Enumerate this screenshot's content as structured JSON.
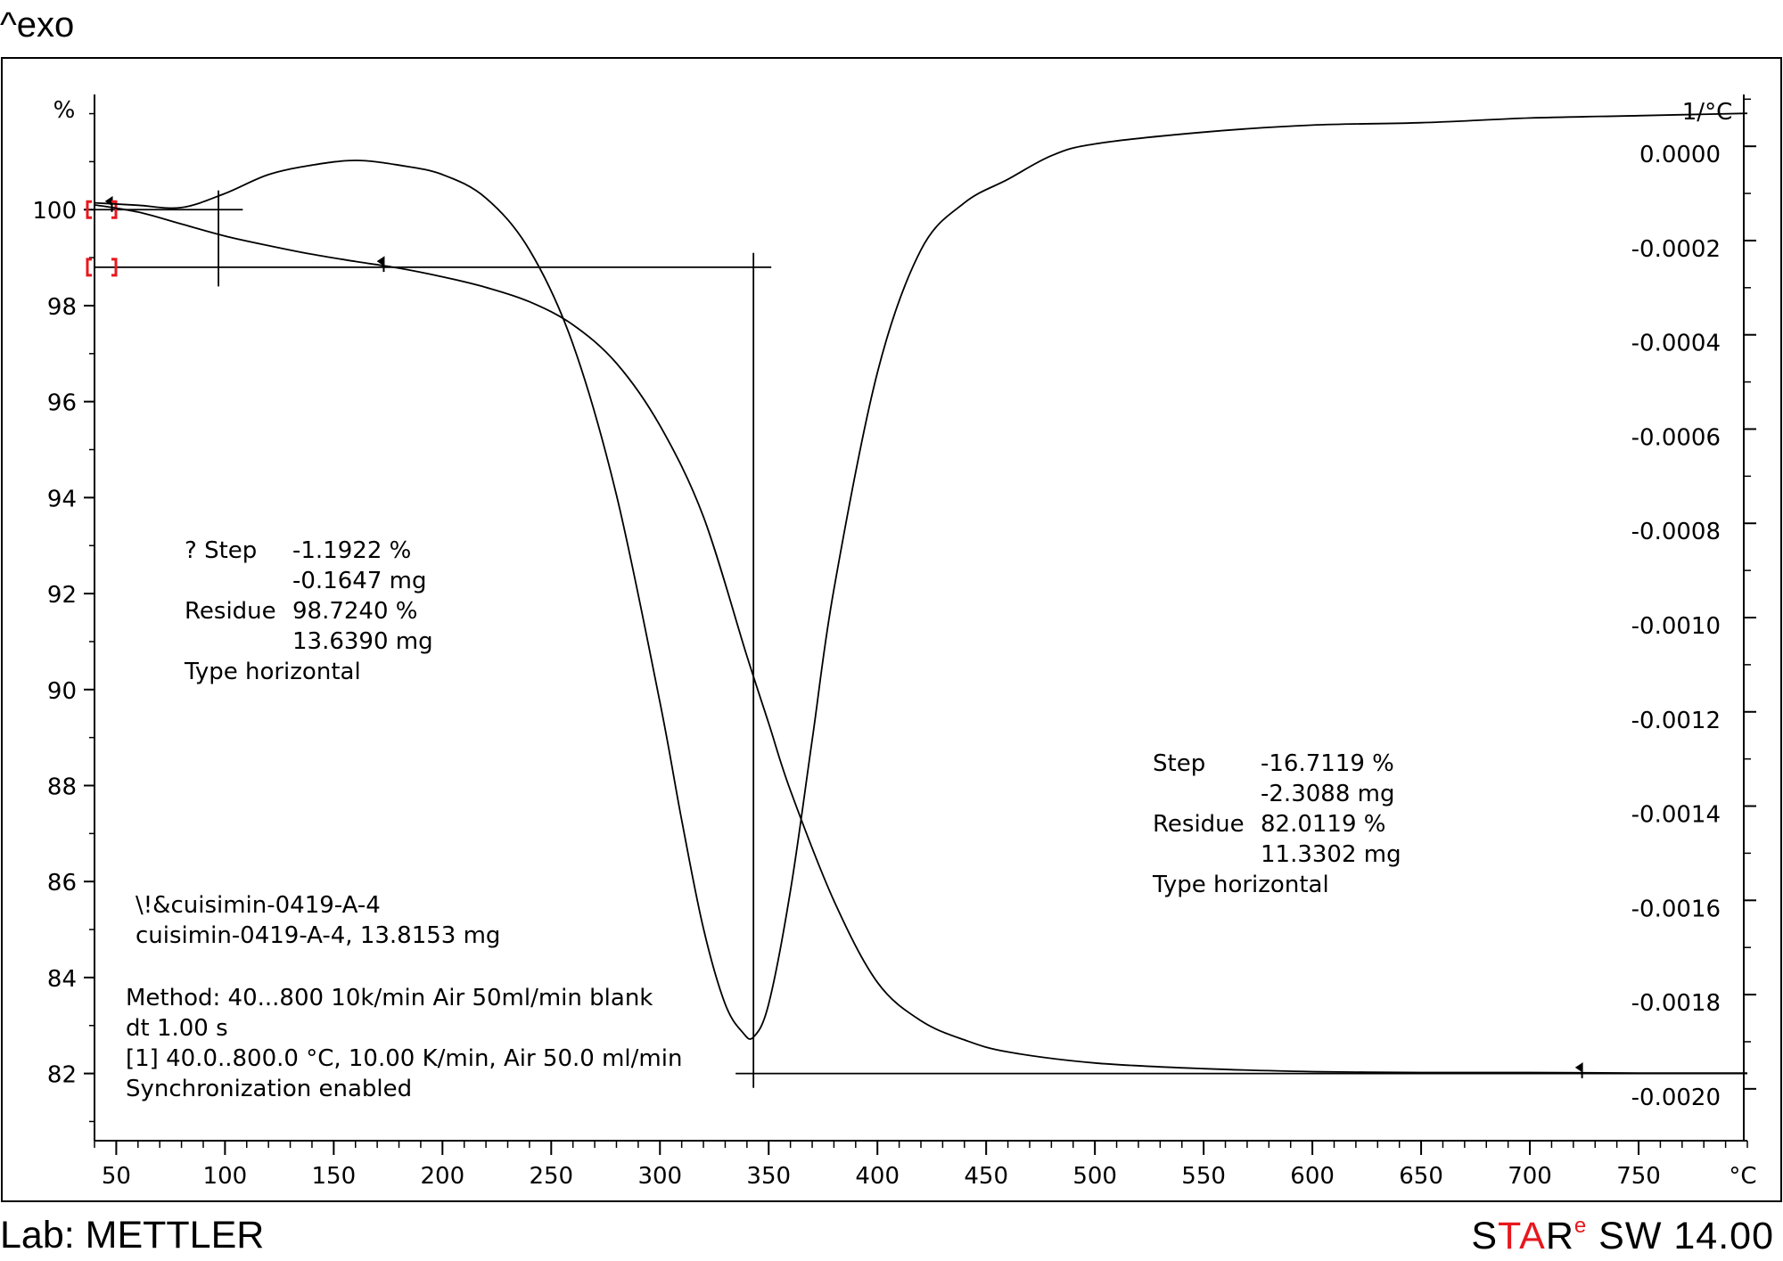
{
  "header": {
    "exo_label": "^exo"
  },
  "footer": {
    "lab": "Lab: METTLER",
    "brand_s": "S",
    "brand_ta": "TA",
    "brand_r": "R",
    "brand_e": "e",
    "brand_version": " SW 14.00"
  },
  "chart_data": {
    "type": "line",
    "xlabel": "°C",
    "ylabel_left": "%",
    "ylabel_right": "1/°C",
    "xlim": [
      40,
      800
    ],
    "ylim_left": [
      80.6,
      102.4
    ],
    "ylim_right": [
      -0.00211,
      0.00011
    ],
    "x_ticks": [
      50,
      100,
      150,
      200,
      250,
      300,
      350,
      400,
      450,
      500,
      550,
      600,
      650,
      700,
      750
    ],
    "y_ticks_left": [
      82,
      84,
      86,
      88,
      90,
      92,
      94,
      96,
      98,
      100
    ],
    "y_ticks_right": [
      0.0,
      -0.0002,
      -0.0004,
      -0.0006,
      -0.0008,
      -0.001,
      -0.0012,
      -0.0014,
      -0.0016,
      -0.0018,
      -0.002
    ],
    "y_tick_labels_right": [
      "0.0000",
      "-0.0002",
      "-0.0004",
      "-0.0006",
      "-0.0008",
      "-0.0010",
      "-0.0012",
      "-0.0014",
      "-0.0016",
      "-0.0018",
      "-0.0020"
    ],
    "grid": false,
    "series": [
      {
        "axis": "left",
        "x": [
          40,
          60,
          80,
          100,
          120,
          140,
          160,
          180,
          200,
          220,
          240,
          260,
          280,
          300,
          320,
          340,
          350,
          360,
          380,
          400,
          420,
          440,
          460,
          500,
          550,
          600,
          650,
          700,
          750,
          800
        ],
        "y": [
          100.1,
          99.95,
          99.7,
          99.45,
          99.25,
          99.07,
          98.92,
          98.78,
          98.6,
          98.38,
          98.08,
          97.6,
          96.8,
          95.5,
          93.6,
          90.7,
          89.3,
          87.9,
          85.6,
          83.9,
          83.1,
          82.7,
          82.45,
          82.22,
          82.1,
          82.04,
          82.02,
          82.02,
          82.01,
          82.01
        ]
      },
      {
        "axis": "right",
        "x": [
          40,
          60,
          80,
          100,
          120,
          140,
          160,
          180,
          200,
          220,
          240,
          260,
          280,
          300,
          310,
          320,
          330,
          338,
          343,
          350,
          360,
          370,
          380,
          400,
          420,
          440,
          460,
          480,
          500,
          550,
          600,
          650,
          700,
          750,
          800
        ],
        "y": [
          -0.00012,
          -0.000125,
          -0.00013,
          -0.0001,
          -6e-05,
          -4e-05,
          -3e-05,
          -4e-05,
          -6e-05,
          -0.00011,
          -0.00022,
          -0.00042,
          -0.00074,
          -0.00118,
          -0.00143,
          -0.00166,
          -0.00182,
          -0.00188,
          -0.00189,
          -0.00182,
          -0.00158,
          -0.00126,
          -0.00094,
          -0.00048,
          -0.00022,
          -0.00012,
          -7e-05,
          -2e-05,
          5e-06,
          3e-05,
          4.5e-05,
          5e-05,
          6e-05,
          6.5e-05,
          7e-05
        ]
      }
    ],
    "annotations": [
      {
        "rows": [
          [
            "? Step",
            "-1.1922 %"
          ],
          [
            "",
            "-0.1647 mg"
          ],
          [
            "Residue",
            "98.7240 %"
          ],
          [
            "",
            "13.6390 mg"
          ],
          [
            "Type horizontal",
            ""
          ]
        ]
      },
      {
        "rows": [
          [
            "Step",
            "-16.7119 %"
          ],
          [
            "",
            "-2.3088 mg"
          ],
          [
            "Residue",
            "82.0119 %"
          ],
          [
            "",
            "11.3302 mg"
          ],
          [
            "Type horizontal",
            ""
          ]
        ]
      }
    ],
    "sample_info": [
      "\\!&cuisimin-0419-A-4",
      "cuisimin-0419-A-4, 13.8153 mg"
    ],
    "method_info": [
      "Method: 40...800 10k/min Air 50ml/min blank",
      "dt 1.00 s",
      "[1] 40.0..800.0 °C, 10.00 K/min, Air 50.0 ml/min",
      "Synchronization enabled"
    ],
    "evaluation": {
      "step1": {
        "x_from": 40,
        "x_to": 173,
        "level_start": 100.0,
        "level_end": 98.8,
        "marker_x": [
          100,
          173
        ],
        "limits_left_y": [
          100.0,
          98.8
        ]
      },
      "step2": {
        "x_from": 325,
        "x_to": 340,
        "level_start": 98.8,
        "level_end": 82.0,
        "inflection_x": 343,
        "marker_x": 724
      }
    }
  }
}
